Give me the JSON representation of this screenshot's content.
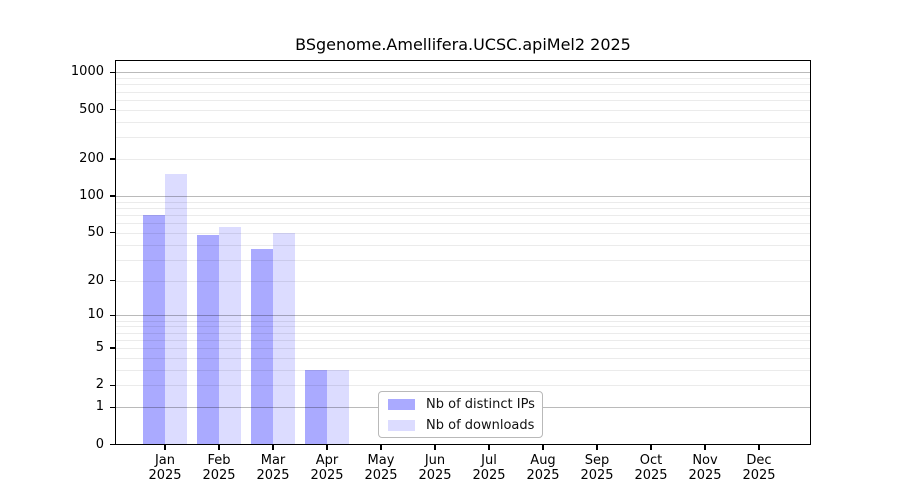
{
  "title": "BSgenome.Amellifera.UCSC.apiMel2 2025",
  "chart_data": {
    "type": "bar",
    "title": "BSgenome.Amellifera.UCSC.apiMel2 2025",
    "x_months": [
      "Jan",
      "Feb",
      "Mar",
      "Apr",
      "May",
      "Jun",
      "Jul",
      "Aug",
      "Sep",
      "Oct",
      "Nov",
      "Dec"
    ],
    "x_year": "2025",
    "series": [
      {
        "name": "Nb of distinct IPs",
        "color": "#aaaaff",
        "values": [
          70,
          48,
          37,
          3,
          0,
          0,
          0,
          0,
          0,
          0,
          0,
          0
        ]
      },
      {
        "name": "Nb of downloads",
        "color": "#dcdcff",
        "values": [
          150,
          56,
          50,
          3,
          0,
          0,
          0,
          0,
          0,
          0,
          0,
          0
        ]
      }
    ],
    "y_axis": {
      "scale": "log1p",
      "tick_values": [
        0,
        1,
        2,
        5,
        10,
        20,
        50,
        100,
        200,
        500,
        1000
      ],
      "top_value": 1260
    },
    "gridlines": {
      "major": [
        1,
        10,
        100,
        1000
      ],
      "minor": [
        2,
        3,
        4,
        5,
        6,
        7,
        8,
        9,
        20,
        30,
        40,
        50,
        60,
        70,
        80,
        90,
        200,
        300,
        400,
        500,
        600,
        700,
        800,
        900
      ]
    },
    "legend": {
      "entries": [
        "Nb of distinct IPs",
        "Nb of downloads"
      ],
      "position": "bottom-center"
    },
    "colors": {
      "bar_dark": "#aaaaff",
      "bar_light": "#dcdcff",
      "axis": "#000000"
    }
  }
}
